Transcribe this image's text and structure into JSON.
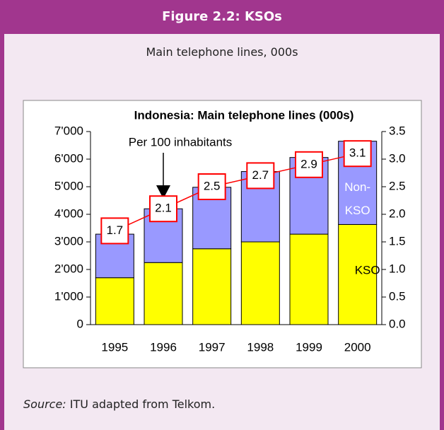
{
  "header": {
    "title": "Figure 2.2: KSOs",
    "subtitle": "Main telephone lines, 000s"
  },
  "source": {
    "label": "Source:",
    "text": "ITU adapted from Telkom."
  },
  "chart_data": {
    "type": "bar",
    "stacked": true,
    "title": "Indonesia: Main telephone lines (000s)",
    "categories": [
      "1995",
      "1996",
      "1997",
      "1998",
      "1999",
      "2000"
    ],
    "series": [
      {
        "name": "KSO",
        "color": "#ffff00",
        "values": [
          1700,
          2250,
          2750,
          3000,
          3280,
          3630
        ]
      },
      {
        "name": "Non-KSO",
        "color": "#9999ff",
        "values": [
          1580,
          1950,
          2230,
          2550,
          2780,
          3020
        ]
      },
      {
        "name": "Per 100 inhabitants",
        "type": "line",
        "axis": "y2",
        "color": "#ff0000",
        "values": [
          1.7,
          2.1,
          2.5,
          2.7,
          2.9,
          3.1
        ]
      }
    ],
    "ylim": [
      0,
      7000
    ],
    "yticks": [
      0,
      {
        "value": 1000,
        "label": "1'000"
      },
      {
        "value": 2000,
        "label": "2'000"
      },
      {
        "value": 3000,
        "label": "3'000"
      },
      {
        "value": 4000,
        "label": "4'000"
      },
      {
        "value": 5000,
        "label": "5'000"
      },
      {
        "value": 6000,
        "label": "6'000"
      },
      {
        "value": 7000,
        "label": "7'000"
      }
    ],
    "y2lim": [
      0,
      3.5
    ],
    "y2ticks": [
      {
        "value": 0,
        "label": "0.0"
      },
      0.5,
      {
        "value": 1,
        "label": "1.0"
      },
      1.5,
      {
        "value": 2,
        "label": "2.0"
      },
      2.5,
      {
        "value": 3,
        "label": "3.0"
      },
      3.5
    ]
  }
}
